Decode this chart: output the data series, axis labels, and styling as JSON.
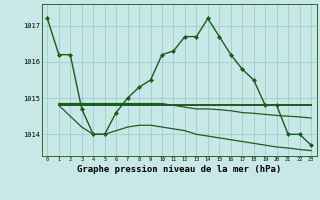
{
  "title": "Graphe pression niveau de la mer (hPa)",
  "background_color": "#c8e8e8",
  "plot_bg_color": "#c8e8e8",
  "line_color": "#1a5c1a",
  "grid_color": "#88c0c0",
  "xlim": [
    -0.5,
    23.5
  ],
  "ylim": [
    1013.4,
    1017.6
  ],
  "yticks": [
    1014,
    1015,
    1016,
    1017
  ],
  "ytick_labels": [
    "1014",
    "1015",
    "1016",
    "1017"
  ],
  "title_fontsize": 6.5,
  "series": [
    {
      "x": [
        0,
        1,
        2,
        3,
        4,
        5,
        6,
        7,
        8,
        9,
        10,
        11,
        12,
        13,
        14,
        15,
        16,
        17,
        18,
        19,
        20,
        21,
        22,
        23
      ],
      "y": [
        1017.2,
        1016.2,
        1016.2,
        1014.7,
        1014.0,
        1014.0,
        1014.6,
        1015.0,
        1015.3,
        1015.5,
        1016.2,
        1016.3,
        1016.7,
        1016.7,
        1017.2,
        1016.7,
        1016.2,
        1015.8,
        1015.5,
        1014.8,
        1014.8,
        1014.0,
        1014.0,
        1013.7
      ],
      "marker": "D",
      "linewidth": 1.0,
      "markersize": 2.0
    },
    {
      "x": [
        1,
        23
      ],
      "y": [
        1014.8,
        1014.8
      ],
      "marker": null,
      "linewidth": 1.4,
      "markersize": 0
    },
    {
      "x": [
        1,
        2,
        3,
        4,
        5,
        6,
        7,
        8,
        9,
        10,
        11,
        12,
        13,
        14,
        15,
        16,
        17,
        18,
        19,
        20,
        21,
        22,
        23
      ],
      "y": [
        1014.85,
        1014.85,
        1014.85,
        1014.85,
        1014.85,
        1014.85,
        1014.85,
        1014.85,
        1014.85,
        1014.85,
        1014.8,
        1014.75,
        1014.7,
        1014.7,
        1014.68,
        1014.65,
        1014.6,
        1014.58,
        1014.55,
        1014.52,
        1014.5,
        1014.48,
        1014.45
      ],
      "marker": null,
      "linewidth": 0.9,
      "markersize": 0
    },
    {
      "x": [
        1,
        2,
        3,
        4,
        5,
        6,
        7,
        8,
        9,
        10,
        11,
        12,
        13,
        14,
        15,
        16,
        17,
        18,
        19,
        20,
        21,
        22,
        23
      ],
      "y": [
        1014.8,
        1014.5,
        1014.2,
        1014.0,
        1014.0,
        1014.1,
        1014.2,
        1014.25,
        1014.25,
        1014.2,
        1014.15,
        1014.1,
        1014.0,
        1013.95,
        1013.9,
        1013.85,
        1013.8,
        1013.75,
        1013.7,
        1013.65,
        1013.62,
        1013.58,
        1013.55
      ],
      "marker": null,
      "linewidth": 0.9,
      "markersize": 0
    }
  ]
}
